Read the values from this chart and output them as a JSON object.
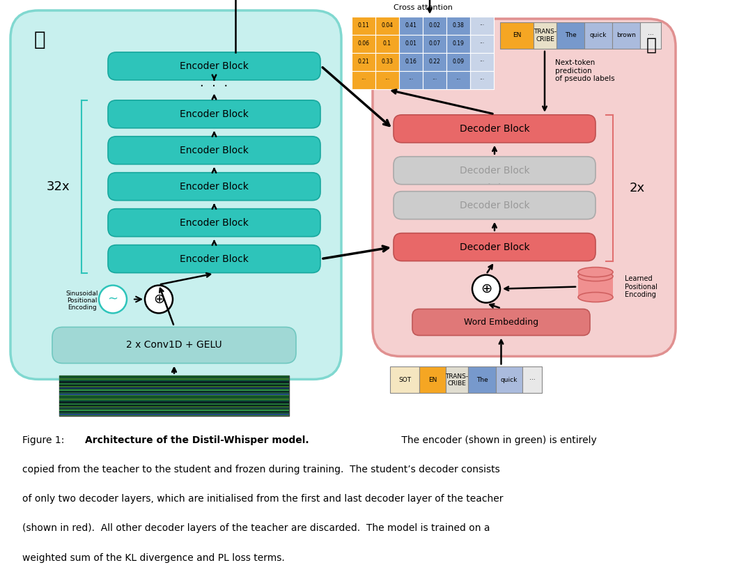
{
  "encoder_bg": "#c8f0ee",
  "encoder_block_color": "#2ec4ba",
  "decoder_bg": "#f5d0d0",
  "decoder_block_active": "#e86868",
  "decoder_block_inactive": "#cccccc",
  "word_embedding_color": "#e86868",
  "matrix_orange": "#f5a623",
  "matrix_blue": "#7799cc",
  "matrix_light": "#c8d4e8",
  "token_orange": "#f5a623",
  "token_blue_dark": "#5588cc",
  "token_blue_light": "#99bbdd",
  "cap_line1_pre": "Figure 1:  ",
  "cap_line1_bold": "Architecture of the Distil-Whisper model.",
  "cap_line1_rest": "  The encoder (shown in green) is entirely",
  "cap_line2": "copied from the teacher to the student and frozen during training.  The student’s decoder consists",
  "cap_line3": "of only two decoder layers, which are initialised from the first and last decoder layer of the teacher",
  "cap_line4": "(shown in red).  All other decoder layers of the teacher are discarded.  The model is trained on a",
  "cap_line5": "weighted sum of the KL divergence and PL loss terms."
}
